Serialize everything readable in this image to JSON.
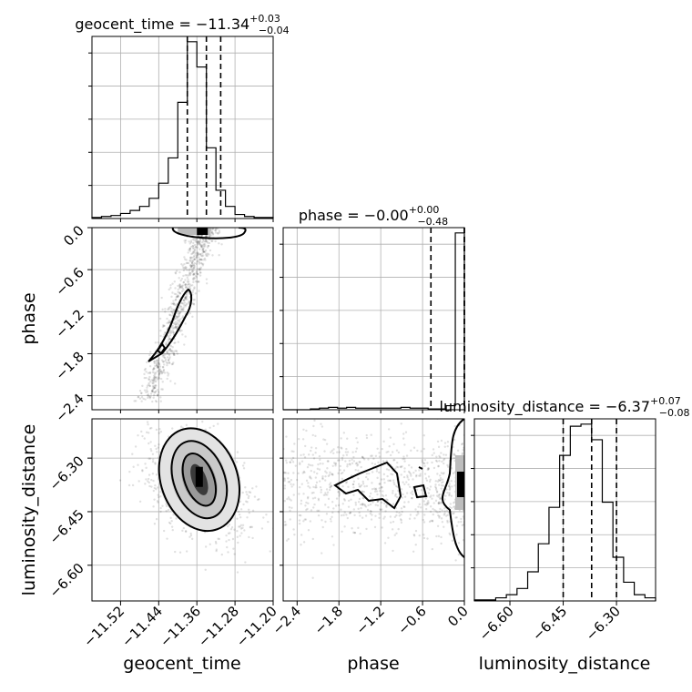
{
  "chart_data": {
    "type": "corner",
    "parameters": [
      {
        "name": "geocent_time",
        "median": "−11.34",
        "plus": "+0.03",
        "minus": "−0.04"
      },
      {
        "name": "phase",
        "median": "−0.00",
        "plus": "+0.00",
        "minus": "−0.48"
      },
      {
        "name": "luminosity_distance",
        "median": "−6.37",
        "plus": "+0.07",
        "minus": "−0.08"
      }
    ],
    "titles": {
      "geocent_time": "geocent_time = −11.34",
      "phase": "phase = −0.00",
      "luminosity_distance": "luminosity_distance = −6.37"
    },
    "ranges": {
      "geocent_time": [
        -11.58,
        -11.2
      ],
      "phase": [
        -2.6,
        0.0
      ],
      "luminosity_distance": [
        -6.7,
        -6.19
      ]
    },
    "ticks": {
      "geocent_time": [
        "−11.52",
        "−11.44",
        "−11.36",
        "−11.28",
        "−11.20"
      ],
      "phase": [
        "−2.4",
        "−1.8",
        "−1.2",
        "−0.6",
        "0.0"
      ],
      "luminosity_distance": [
        "−6.60",
        "−6.45",
        "−6.30"
      ]
    },
    "tick_values": {
      "geocent_time": [
        -11.52,
        -11.44,
        -11.36,
        -11.28,
        -11.2
      ],
      "phase": [
        -2.4,
        -1.8,
        -1.2,
        -0.6,
        0.0
      ],
      "luminosity_distance": [
        -6.6,
        -6.45,
        -6.3
      ]
    },
    "quantiles": {
      "geocent_time": [
        -11.38,
        -11.34,
        -11.31
      ],
      "phase": [
        -0.48,
        -0.0,
        0.0
      ],
      "luminosity_distance": [
        -6.45,
        -6.37,
        -6.3
      ]
    },
    "hist_1d": {
      "geocent_time": [
        1,
        2,
        3,
        5,
        8,
        12,
        20,
        35,
        60,
        115,
        175,
        150,
        70,
        28,
        12,
        4,
        2,
        1,
        1
      ],
      "phase": [
        0,
        0,
        0,
        1,
        2,
        3,
        2,
        3,
        2,
        2,
        2,
        2,
        2,
        3,
        2,
        2,
        1,
        1,
        5,
        220
      ],
      "luminosity_distance": [
        1,
        1,
        3,
        6,
        12,
        28,
        55,
        90,
        140,
        168,
        170,
        155,
        95,
        42,
        18,
        6,
        3
      ]
    },
    "grid": true,
    "axis_labels": {
      "geocent_time": "geocent_time",
      "phase": "phase",
      "luminosity_distance": "luminosity_distance"
    }
  }
}
